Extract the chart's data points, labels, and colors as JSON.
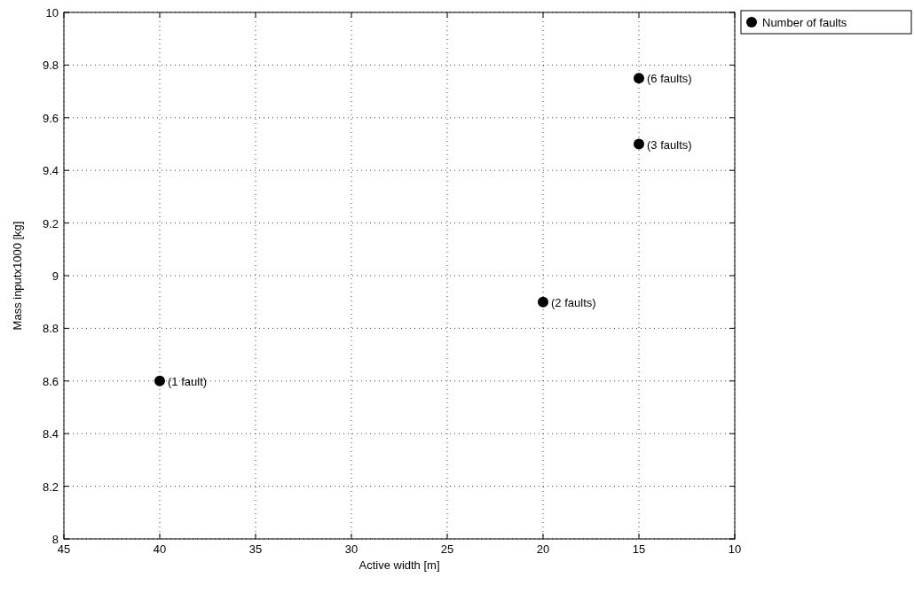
{
  "chart_data": {
    "type": "scatter",
    "xlabel": "Active width [m]",
    "ylabel": "Mass inputx1000 [kg]",
    "x": [
      40,
      20,
      15,
      15
    ],
    "series": [
      {
        "name": "Number of faults",
        "color": "#000000",
        "values": [
          8.6,
          8.9,
          9.5,
          9.75
        ]
      }
    ],
    "xlim": [
      45,
      10
    ],
    "xticks": [
      45,
      40,
      35,
      30,
      25,
      20,
      15,
      10
    ],
    "ylim": [
      8,
      10
    ],
    "yticks": [
      8,
      8.2,
      8.4,
      8.6,
      8.8,
      9,
      9.2,
      9.4,
      9.6,
      9.8,
      10
    ],
    "grid": true,
    "legend": "top right",
    "marker": "circle",
    "annotations": [
      {
        "text": "(1 fault)",
        "x": 40,
        "y": 8.6
      },
      {
        "text": "(2 faults)",
        "x": 20,
        "y": 8.9
      },
      {
        "text": "(3 faults)",
        "x": 15,
        "y": 9.5
      },
      {
        "text": "(6 faults)",
        "x": 15,
        "y": 9.75
      }
    ]
  }
}
